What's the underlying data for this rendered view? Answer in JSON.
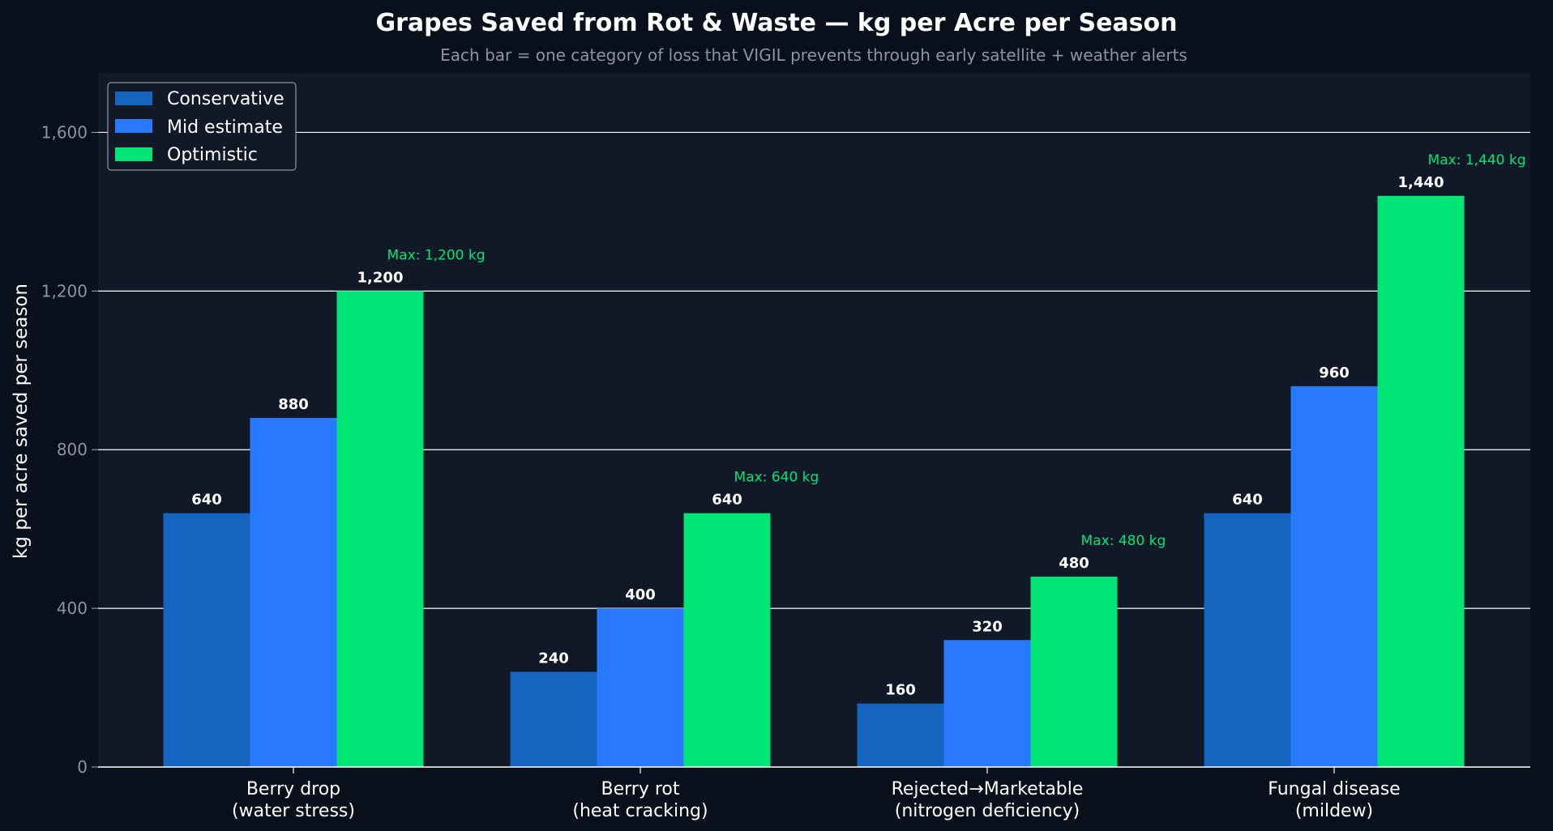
{
  "chart_data": {
    "type": "bar",
    "title": "Grapes Saved from Rot & Waste — kg per Acre per Season",
    "subtitle": "Each bar = one category of loss that VIGIL prevents through early satellite + weather alerts",
    "ylabel": "kg per acre saved per season",
    "xlabel": "",
    "ylim": [
      0,
      1750
    ],
    "yticks": [
      0,
      400,
      800,
      1200,
      1600
    ],
    "ytick_labels": [
      "0",
      "400",
      "800",
      "1,200",
      "1,600"
    ],
    "grid": true,
    "legend_placement": "top-left",
    "categories": [
      [
        "Berry drop",
        "(water stress)"
      ],
      [
        "Berry rot",
        "(heat cracking)"
      ],
      [
        "Rejected→Marketable",
        "(nitrogen deficiency)"
      ],
      [
        "Fungal disease",
        "(mildew)"
      ]
    ],
    "series": [
      {
        "name": "Conservative",
        "color": "#1565c0",
        "values": [
          640,
          240,
          160,
          640
        ],
        "labels": [
          "640",
          "240",
          "160",
          "640"
        ]
      },
      {
        "name": "Mid estimate",
        "color": "#2979ff",
        "values": [
          880,
          400,
          320,
          960
        ],
        "labels": [
          "880",
          "400",
          "320",
          "960"
        ]
      },
      {
        "name": "Optimistic",
        "color": "#00e676",
        "values": [
          1200,
          640,
          480,
          1440
        ],
        "labels": [
          "1,200",
          "640",
          "480",
          "1,440"
        ]
      }
    ],
    "annotations": [
      "Max: 1,200 kg",
      "Max: 640 kg",
      "Max: 480 kg",
      "Max: 1,440 kg"
    ],
    "annotation_color": "#00e676",
    "colors": {
      "background": "#0a0f1c",
      "plot_background": "#111827",
      "grid": "#ffffff",
      "axis_text": "#8b93a7"
    }
  }
}
